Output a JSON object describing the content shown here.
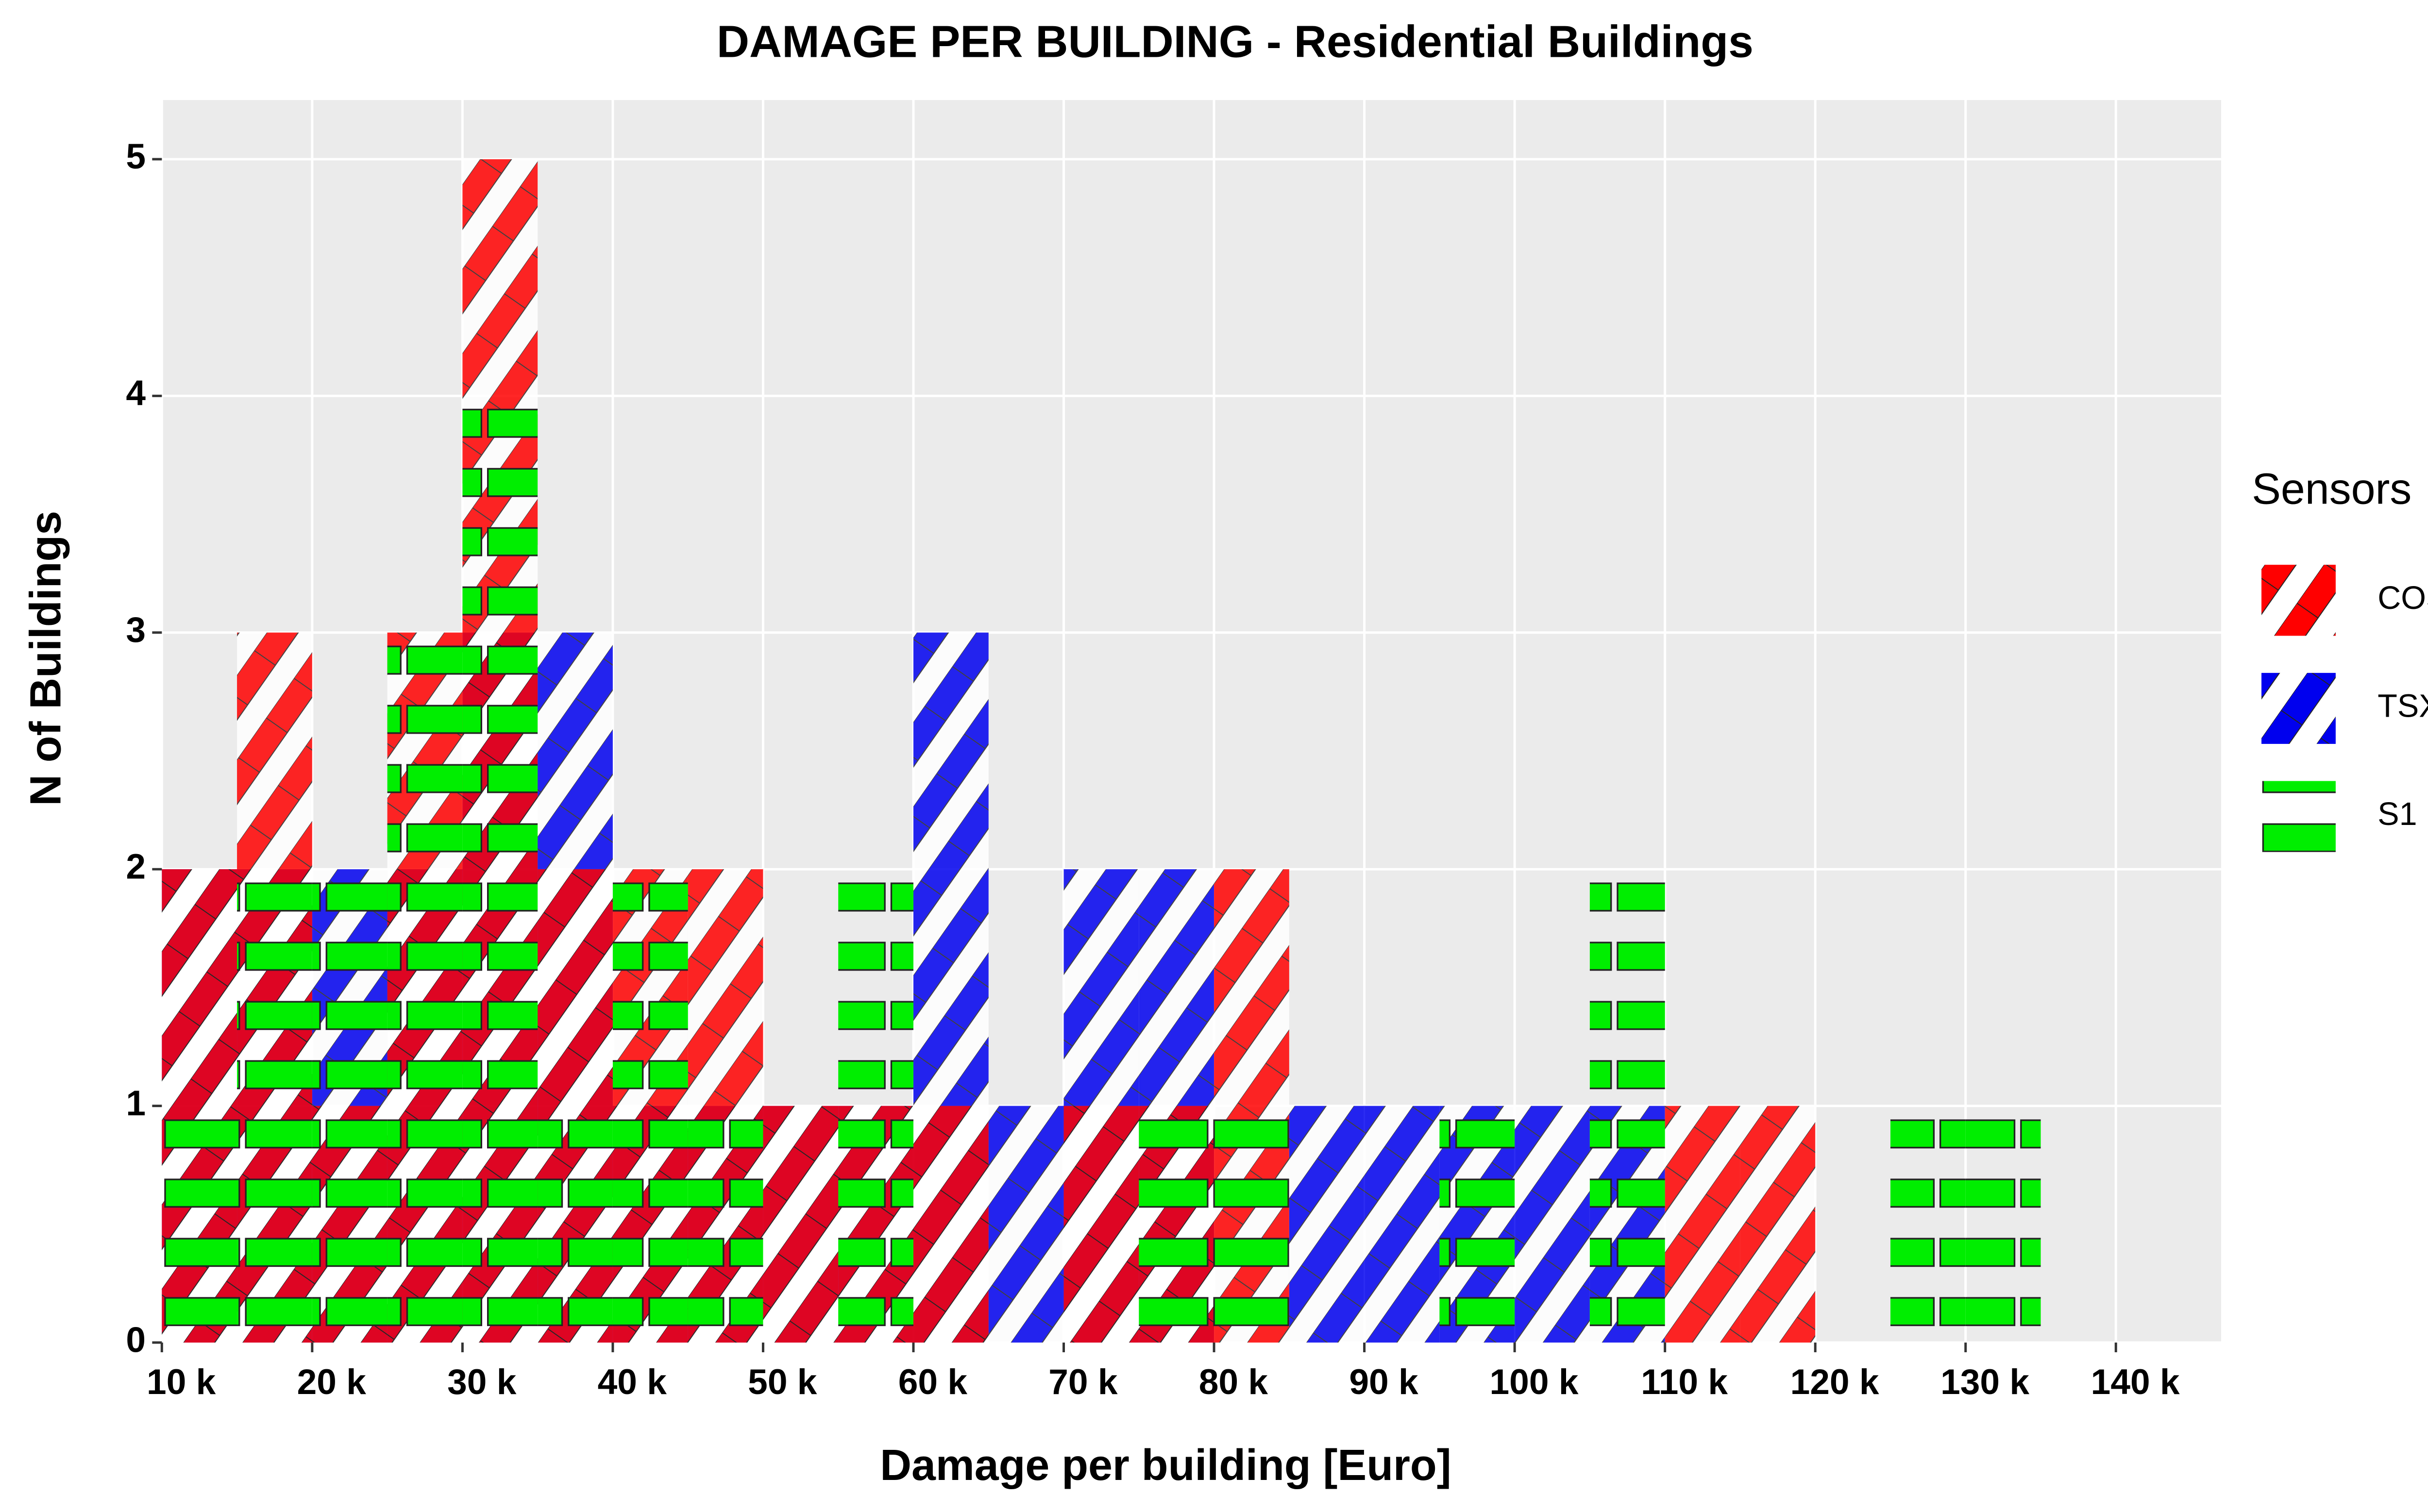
{
  "chart_data": {
    "type": "histogram",
    "title": "DAMAGE PER BUILDING - Residential Buildings",
    "x_label": "Damage per building [Euro]",
    "y_label": "N of Buildings",
    "bins": [
      10000,
      15000,
      20000,
      25000,
      30000,
      35000,
      40000,
      45000,
      50000,
      55000,
      60000,
      65000,
      70000,
      75000,
      80000,
      85000,
      90000,
      95000,
      100000,
      105000,
      110000,
      115000,
      120000,
      125000,
      130000,
      135000
    ],
    "series": [
      {
        "name": "TSX",
        "color": "#0000ee",
        "pattern": "stripes",
        "values": [
          2,
          2,
          2,
          2,
          3,
          3,
          1,
          1,
          1,
          1,
          3,
          1,
          2,
          2,
          0,
          1,
          1,
          1,
          1,
          1,
          0,
          0,
          0,
          0,
          0
        ]
      },
      {
        "name": "COSMO",
        "color": "#ff0000",
        "pattern": "stripes",
        "values": [
          2,
          3,
          1,
          3,
          5,
          2,
          2,
          2,
          1,
          1,
          1,
          0,
          1,
          1,
          2,
          0,
          0,
          0,
          0,
          0,
          1,
          1,
          0,
          0,
          0
        ]
      },
      {
        "name": "S1",
        "color": "#00ee00",
        "pattern": "blocks",
        "values": [
          1,
          2,
          2,
          3,
          4,
          1,
          2,
          1,
          0,
          2,
          0,
          0,
          0,
          1,
          1,
          0,
          0,
          1,
          0,
          2,
          0,
          0,
          0,
          1,
          1
        ]
      }
    ],
    "xlim": [
      10000,
      147000
    ],
    "ylim": [
      0,
      5.25
    ],
    "xticks": [
      {
        "value": 10000,
        "label": "10 k"
      },
      {
        "value": 20000,
        "label": "20 k"
      },
      {
        "value": 30000,
        "label": "30 k"
      },
      {
        "value": 40000,
        "label": "40 k"
      },
      {
        "value": 50000,
        "label": "50 k"
      },
      {
        "value": 60000,
        "label": "60 k"
      },
      {
        "value": 70000,
        "label": "70 k"
      },
      {
        "value": 80000,
        "label": "80 k"
      },
      {
        "value": 90000,
        "label": "90 k"
      },
      {
        "value": 100000,
        "label": "100 k"
      },
      {
        "value": 110000,
        "label": "110 k"
      },
      {
        "value": 120000,
        "label": "120 k"
      },
      {
        "value": 130000,
        "label": "130 k"
      },
      {
        "value": 140000,
        "label": "140 k"
      }
    ],
    "yticks": [
      0,
      1,
      2,
      3,
      4,
      5
    ],
    "grid": true,
    "legend_title": "Sensors",
    "legend": "right"
  }
}
